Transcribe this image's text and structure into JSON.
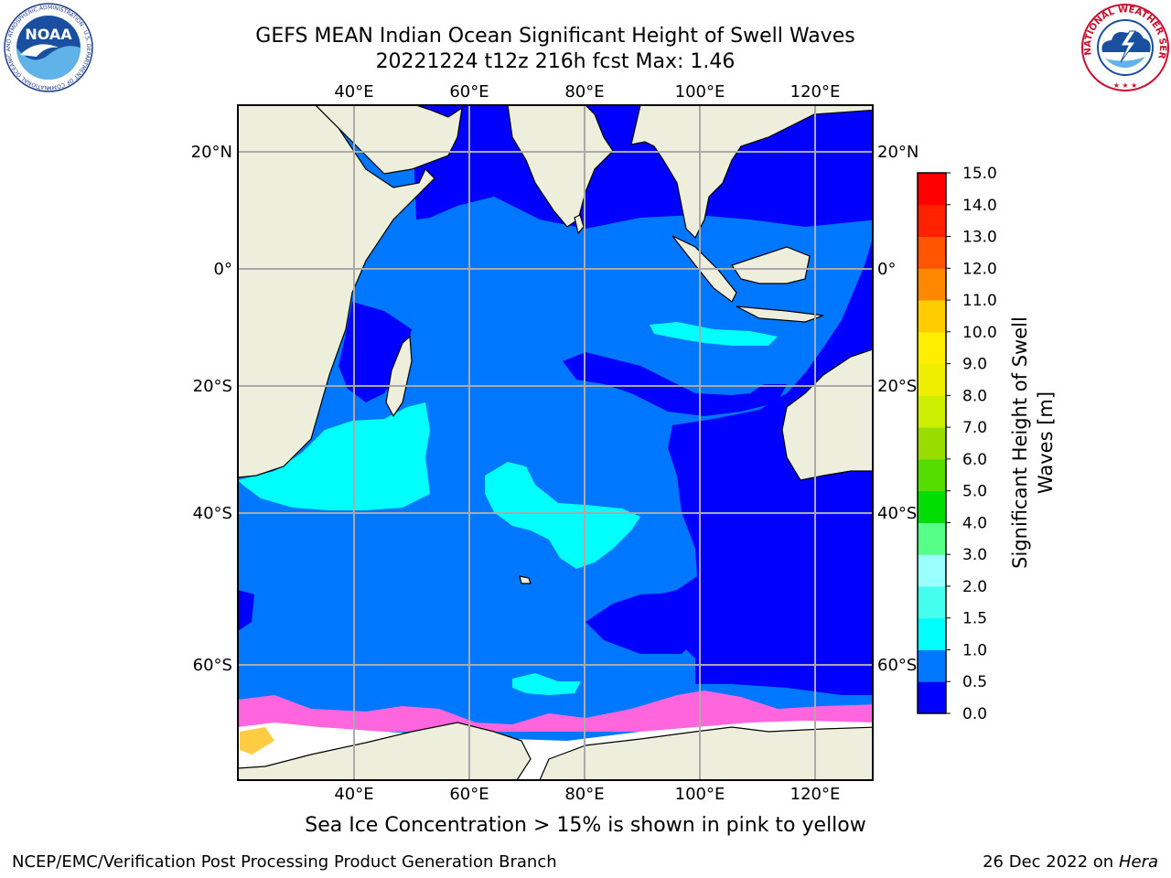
{
  "header": {
    "title_line1": "GEFS MEAN Indian Ocean Significant Height of Swell Waves",
    "title_line2": "20221224 t12z 216h fcst   Max: 1.46"
  },
  "map": {
    "lon_labels": [
      "40°E",
      "60°E",
      "80°E",
      "100°E",
      "120°E"
    ],
    "lat_labels": [
      "20°N",
      "0°",
      "20°S",
      "40°S",
      "60°S"
    ]
  },
  "colorbar": {
    "label_line1": "Significant Height of Swell",
    "label_line2": "Waves [m]",
    "ticks": [
      "0.0",
      "0.5",
      "1.0",
      "1.5",
      "2.0",
      "3.0",
      "4.0",
      "5.0",
      "6.0",
      "7.0",
      "8.0",
      "9.0",
      "10.0",
      "11.0",
      "12.0",
      "13.0",
      "14.0",
      "15.0"
    ],
    "colors": [
      "#0000ff",
      "#0077ff",
      "#00ffff",
      "#44ffee",
      "#99ffff",
      "#55ff88",
      "#00dd00",
      "#55dd00",
      "#99dd00",
      "#ccee00",
      "#eeee00",
      "#ffee00",
      "#ffcc00",
      "#ff8800",
      "#ff5500",
      "#ff2200",
      "#ff0000"
    ]
  },
  "legend_note": "Sea Ice Concentration > 15% is shown in pink to yellow",
  "footer": {
    "org": "NCEP/EMC/Verification Post Processing Product Generation Branch",
    "date": "26 Dec 2022 on",
    "machine": "Hera"
  },
  "logos": {
    "left": "NOAA",
    "left_ring": "NATIONAL OCEANIC AND ATMOSPHERIC ADMINISTRATION · U.S. DEPARTMENT OF COMMERCE",
    "right_ring": "NATIONAL WEATHER SERVICE"
  }
}
